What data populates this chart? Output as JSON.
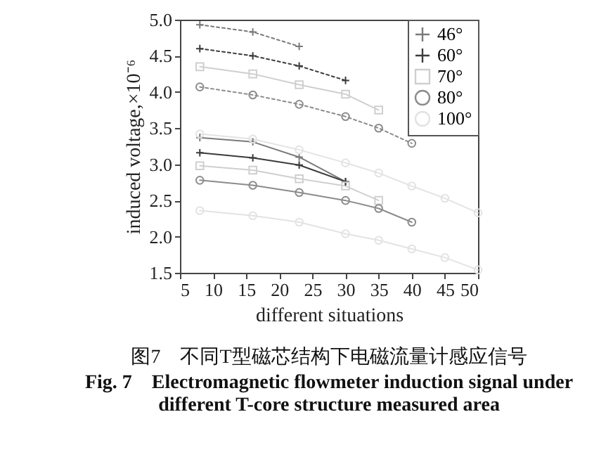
{
  "chart_data": {
    "type": "line",
    "title": "图7　不同T型磁芯结构下电磁流量计感应信号",
    "subtitle": "Fig. 7　Electromagnetic flowmeter induction signal under different T-core structure measured area",
    "xlabel": "different situations",
    "ylabel": "induced voltage,×10⁻⁶",
    "xlim": [
      5,
      50
    ],
    "xticks": [
      5,
      10,
      15,
      20,
      25,
      30,
      35,
      40,
      45,
      50
    ],
    "ylim": [
      1.5,
      5.0
    ],
    "yticks": [
      {
        "value": 1.5,
        "label": "1.5"
      },
      {
        "value": 2,
        "label": "2.0"
      },
      {
        "value": 2.5,
        "label": "2.5"
      },
      {
        "value": 3,
        "label": "3.0"
      },
      {
        "value": 3.5,
        "label": "3.5"
      },
      {
        "value": 4,
        "label": "4.0"
      },
      {
        "value": 4.5,
        "label": "4.5"
      },
      {
        "value": 5,
        "label": "5.0"
      }
    ],
    "grid": false,
    "legend": "top right",
    "series": [
      {
        "name": "46°",
        "color": "#7a7a7a",
        "marker": "cross",
        "line_style": "solid",
        "x": [
          8,
          16,
          23,
          30
        ],
        "values": [
          3.37,
          3.31,
          3.1,
          2.76
        ]
      },
      {
        "name": "60°",
        "color": "#3c3c3c",
        "marker": "cross",
        "line_style": "solid",
        "x": [
          8,
          16,
          23,
          30
        ],
        "values": [
          3.16,
          3.09,
          2.99,
          2.76
        ]
      },
      {
        "name": "70°",
        "color": "#cfcfcf",
        "marker": "square",
        "line_style": "solid",
        "x": [
          8,
          16,
          23,
          30,
          35
        ],
        "values": [
          2.98,
          2.92,
          2.8,
          2.7,
          2.5
        ]
      },
      {
        "name": "80°",
        "color": "#8c8c8c",
        "marker": "circle",
        "line_style": "solid",
        "x": [
          8,
          16,
          23,
          30,
          35,
          40
        ],
        "values": [
          2.78,
          2.71,
          2.61,
          2.5,
          2.39,
          2.2
        ]
      },
      {
        "name": "100°",
        "color": "#e3e3e3",
        "marker": "circle",
        "line_style": "solid",
        "x": [
          8,
          16,
          23,
          30,
          35,
          40,
          45,
          50
        ],
        "values": [
          2.36,
          2.29,
          2.2,
          2.04,
          1.95,
          1.83,
          1.71,
          1.54
        ]
      },
      {
        "color": "#7a7a7a",
        "marker": "cross",
        "line_style": "dotted",
        "x": [
          8,
          16,
          23
        ],
        "values": [
          4.93,
          4.83,
          4.63
        ]
      },
      {
        "color": "#3c3c3c",
        "marker": "cross",
        "line_style": "dotted",
        "x": [
          8,
          16,
          23,
          30
        ],
        "values": [
          4.6,
          4.5,
          4.36,
          4.16
        ]
      },
      {
        "color": "#cfcfcf",
        "marker": "square",
        "line_style": "solid",
        "x": [
          8,
          16,
          23,
          30,
          35
        ],
        "values": [
          4.35,
          4.25,
          4.1,
          3.97,
          3.75
        ]
      },
      {
        "color": "#8c8c8c",
        "marker": "circle",
        "line_style": "dotted",
        "x": [
          8,
          16,
          23,
          30,
          35,
          40
        ],
        "values": [
          4.07,
          3.96,
          3.83,
          3.66,
          3.5,
          3.29
        ]
      },
      {
        "color": "#e3e3e3",
        "marker": "circle",
        "line_style": "solid",
        "x": [
          8,
          16,
          23,
          30,
          35,
          40,
          45,
          50
        ],
        "values": [
          3.42,
          3.35,
          3.2,
          3.02,
          2.88,
          2.7,
          2.53,
          2.33
        ]
      }
    ]
  }
}
